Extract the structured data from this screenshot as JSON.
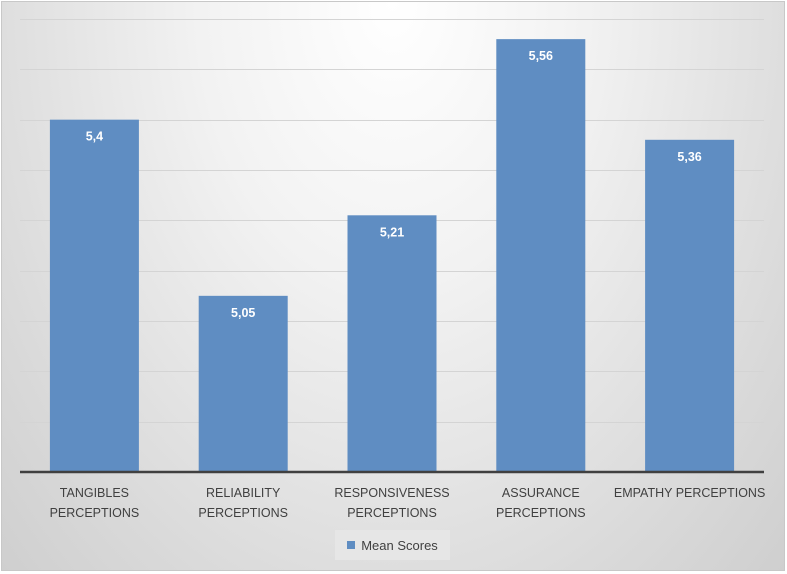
{
  "chart_data": {
    "type": "bar",
    "title": "",
    "xlabel": "",
    "ylabel": "",
    "categories": [
      [
        "TANGIBLES",
        "PERCEPTIONS"
      ],
      [
        "RELIABILITY",
        "PERCEPTIONS"
      ],
      [
        "RESPONSIVENESS",
        "PERCEPTIONS"
      ],
      [
        "ASSURANCE",
        "PERCEPTIONS"
      ],
      [
        "EMPATHY PERCEPTIONS"
      ]
    ],
    "series": [
      {
        "name": "Mean Scores",
        "values": [
          5.4,
          5.05,
          5.21,
          5.56,
          5.36
        ],
        "labels": [
          "5,4",
          "5,05",
          "5,21",
          "5,56",
          "5,36"
        ],
        "color": "#5f8dc2"
      }
    ],
    "ylim": [
      4.7,
      5.6
    ],
    "grid_step": 0.1,
    "grid": true,
    "y_tick_labels_shown": false,
    "legend": {
      "position": "bottom",
      "entries": [
        "Mean Scores"
      ]
    }
  }
}
